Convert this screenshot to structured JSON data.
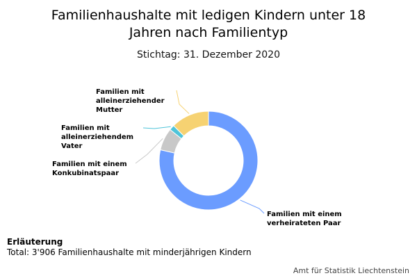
{
  "chart_data": {
    "type": "pie",
    "variant": "donut",
    "title": [
      "Familienhaushalte mit ledigen Kindern unter 18",
      "Jahren nach Familientyp"
    ],
    "subtitle": "Stichtag: 31. Dezember 2020",
    "slices": [
      {
        "label": [
          "Familien mit einem",
          "verheirateten Paar"
        ],
        "value": 78.5,
        "color": "#6b9cff"
      },
      {
        "label": [
          "Familien mit einem",
          "Konkubinatspaar"
        ],
        "value": 7.3,
        "color": "#c8c8c8"
      },
      {
        "label": [
          "Familien mit",
          "alleinerziehendem",
          "Vater"
        ],
        "value": 1.7,
        "color": "#4fc4d9"
      },
      {
        "label": [
          "Familien mit",
          "alleinerziehender",
          "Mutter"
        ],
        "value": 12.5,
        "color": "#f6d272"
      }
    ],
    "legend": "none"
  },
  "notes": {
    "heading": "Erläuterung",
    "text": "Total: 3'906 Familienhaushalte mit minderjährigen Kindern"
  },
  "credit": "Amt für Statistik Liechtenstein"
}
